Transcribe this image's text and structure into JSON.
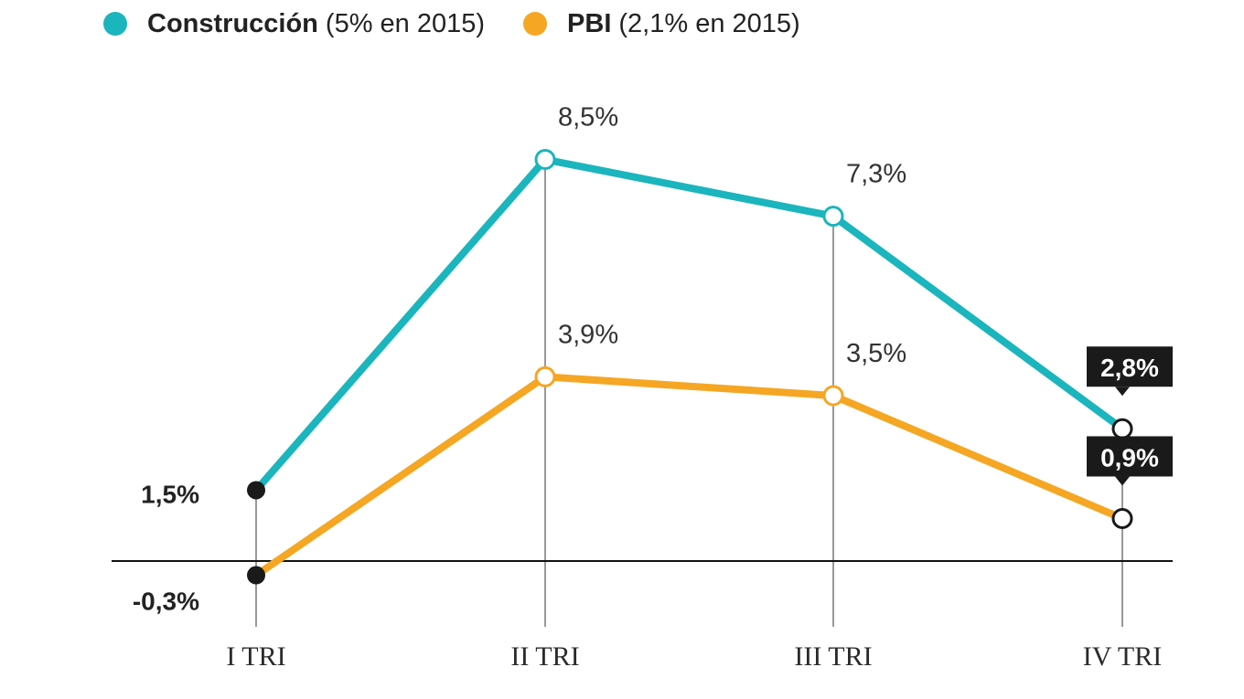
{
  "legend": [
    {
      "name": "Construcción",
      "note": "(5% en 2015)",
      "color": "#1bb5bd"
    },
    {
      "name": "PBI",
      "note": "(2,1% en 2015)",
      "color": "#f5a623"
    }
  ],
  "chart_data": {
    "type": "line",
    "categories": [
      "I TRI",
      "II TRI",
      "III TRI",
      "IV TRI"
    ],
    "series": [
      {
        "name": "Construcción",
        "values": [
          1.5,
          8.5,
          7.3,
          2.8
        ],
        "labels": [
          "1,5%",
          "8,5%",
          "7,3%",
          "2,8%"
        ],
        "color": "#1bb5bd"
      },
      {
        "name": "PBI",
        "values": [
          -0.3,
          3.9,
          3.5,
          0.9
        ],
        "labels": [
          "-0,3%",
          "3,9%",
          "3,5%",
          "0,9%"
        ],
        "color": "#f5a623"
      }
    ],
    "baseline": 0,
    "grid": false,
    "legend_position": "top-left"
  }
}
